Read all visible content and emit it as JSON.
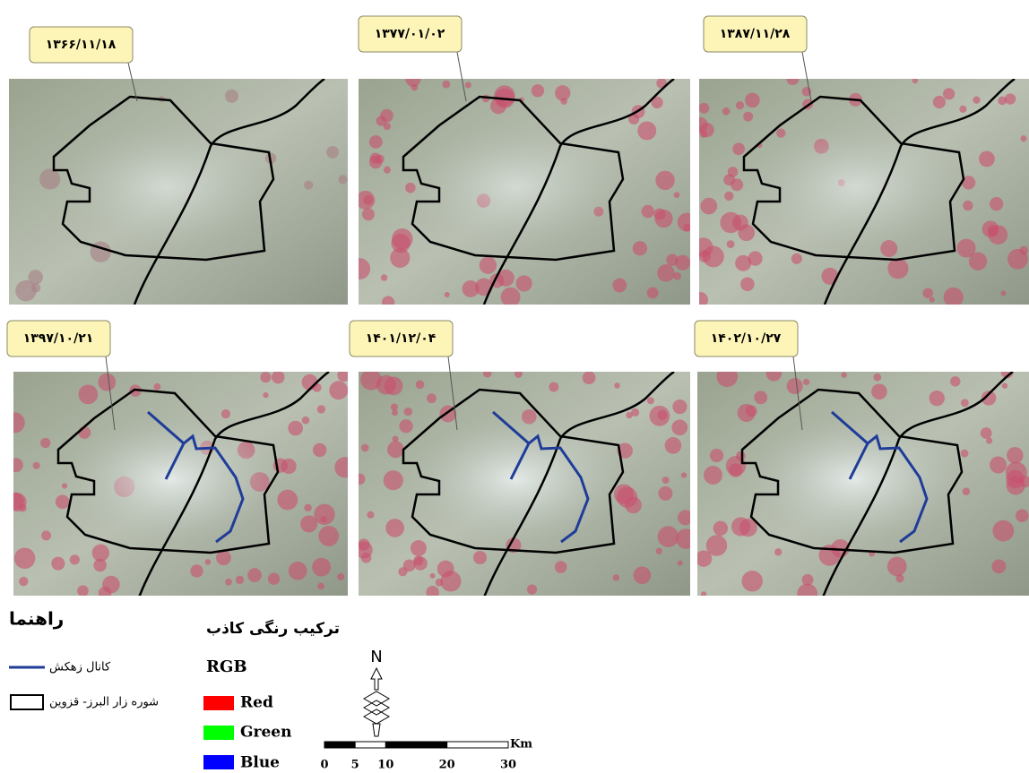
{
  "panels": [
    {
      "date": "۱۳۶۶/۱۱/۱۸"
    },
    {
      "date": "۱۳۷۷/۰۱/۰۲"
    },
    {
      "date": "۱۳۸۷/۱۱/۲۸"
    },
    {
      "date": "۱۳۹۷/۱۰/۲۱"
    },
    {
      "date": "۱۴۰۱/۱۲/۰۴"
    },
    {
      "date": "۱۴۰۲/۱۰/۲۷"
    }
  ],
  "legend": {
    "title": "راهنما",
    "items": [
      "کانال زهکش",
      "شوره زار البرز- قزوین"
    ]
  },
  "composite": {
    "title": "ترکیب رنگی کاذب",
    "scheme": "RGB",
    "bands": [
      "Red",
      "Green",
      "Blue"
    ]
  },
  "north": "N",
  "scale": {
    "ticks": [
      "0",
      "5",
      "10",
      "20",
      "30"
    ],
    "unit": "Km"
  }
}
